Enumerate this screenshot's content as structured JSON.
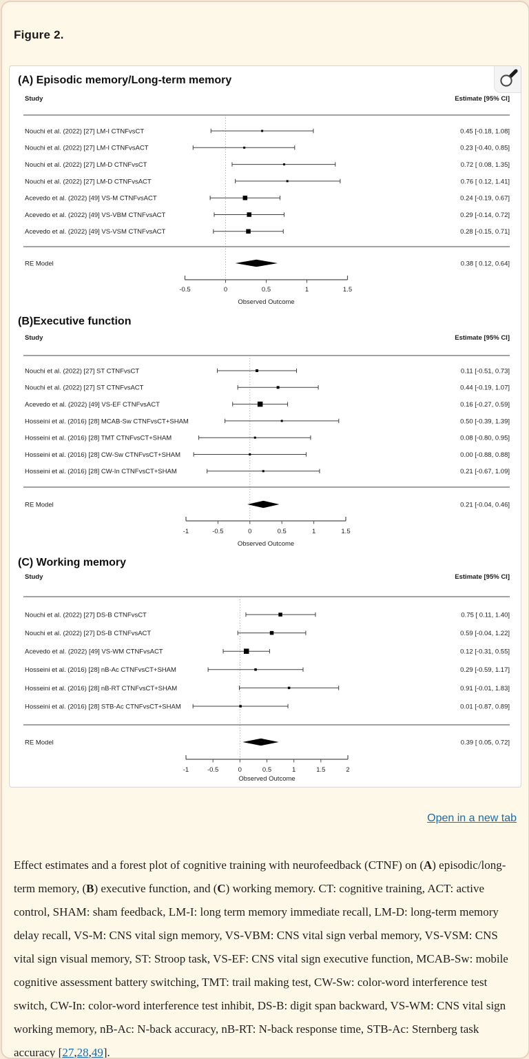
{
  "page": {
    "figure_label": "Figure 2.",
    "open_in_new_tab": "Open in a new tab",
    "accent_link_color": "#1b6ca8",
    "caption": [
      {
        "t": "Effect estimates and a forest plot of cognitive training with neurofeedback (CTNF) on ("
      },
      {
        "t": "A",
        "b": true
      },
      {
        "t": ") episodic/long-term memory, ("
      },
      {
        "t": "B",
        "b": true
      },
      {
        "t": ") executive function, and ("
      },
      {
        "t": "C",
        "b": true
      },
      {
        "t": ") working memory. CT: cognitive training, ACT: active control, SHAM: sham feedback, LM-I: long term memory immediate recall, LM-D: long-term memory delay recall, VS-M: CNS vital sign memory, VS-VBM: CNS vital sign verbal memory, VS-VSM: CNS vital sign visual memory, ST: Stroop task, VS-EF: CNS vital sign executive function, MCAB-Sw: mobile cognitive assessment battery switching, TMT: trail making test, CW-Sw: color-word interference test switch, CW-In: color-word interference test inhibit, DS-B: digit span backward, VS-WM: CNS vital sign working memory, nB-Ac: N-back accuracy, nB-RT: N-back response time, STB-Ac: Sternberg task accuracy ["
      },
      {
        "t": "27",
        "link": true
      },
      {
        "t": ","
      },
      {
        "t": "28",
        "link": true
      },
      {
        "t": ","
      },
      {
        "t": "49",
        "link": true
      },
      {
        "t": "]."
      }
    ],
    "zoom_icon": "magnifier-icon"
  },
  "chart_data": [
    {
      "type": "forest",
      "panel": "A",
      "title": "(A) Episodic memory/Long-term memory",
      "columns": {
        "study": "Study",
        "estimate": "Estimate [95% CI]"
      },
      "xlabel": "Observed Outcome",
      "xlim": [
        -0.5,
        1.5
      ],
      "xticks": [
        -0.5,
        0,
        0.5,
        1,
        1.5
      ],
      "rows": [
        {
          "label": "Nouchi et al. (2022) [27] LM-I CTNFvsCT",
          "est": 0.45,
          "lo": -0.18,
          "hi": 1.08,
          "text": "0.45 [-0.18, 1.08]",
          "msize": 3
        },
        {
          "label": "Nouchi et al. (2022) [27] LM-I CTNFvsACT",
          "est": 0.23,
          "lo": -0.4,
          "hi": 0.85,
          "text": "0.23 [-0.40, 0.85]",
          "msize": 3
        },
        {
          "label": "Nouchi et al. (2022) [27] LM-D CTNFvsCT",
          "est": 0.72,
          "lo": 0.08,
          "hi": 1.35,
          "text": "0.72 [ 0.08, 1.35]",
          "msize": 3
        },
        {
          "label": "Nouchi et al. (2022) [27] LM-D CTNFvsACT",
          "est": 0.76,
          "lo": 0.12,
          "hi": 1.41,
          "text": "0.76 [ 0.12, 1.41]",
          "msize": 3
        },
        {
          "label": "Acevedo et al. (2022) [49] VS-M CTNFvsACT",
          "est": 0.24,
          "lo": -0.19,
          "hi": 0.67,
          "text": "0.24 [-0.19, 0.67]",
          "msize": 6.5
        },
        {
          "label": "Acevedo et al. (2022) [49] VS-VBM CTNFvsACT",
          "est": 0.29,
          "lo": -0.14,
          "hi": 0.72,
          "text": "0.29 [-0.14, 0.72]",
          "msize": 6.5
        },
        {
          "label": "Acevedo et al. (2022) [49] VS-VSM CTNFvsACT",
          "est": 0.28,
          "lo": -0.15,
          "hi": 0.71,
          "text": "0.28 [-0.15, 0.71]",
          "msize": 6.5
        }
      ],
      "re_model": {
        "label": "RE Model",
        "est": 0.38,
        "lo": 0.12,
        "hi": 0.64,
        "text": "0.38 [ 0.12, 0.64]"
      }
    },
    {
      "type": "forest",
      "panel": "B",
      "title": "(B)Executive function",
      "columns": {
        "study": "Study",
        "estimate": "Estimate [95% CI]"
      },
      "xlabel": "Observed Outcome",
      "xlim": [
        -1,
        1.5
      ],
      "xticks": [
        -1,
        -0.5,
        0,
        0.5,
        1,
        1.5
      ],
      "rows": [
        {
          "label": "Nouchi et al. (2022) [27] ST CTNFvsCT",
          "est": 0.11,
          "lo": -0.51,
          "hi": 0.73,
          "text": "0.11 [-0.51, 0.73]",
          "msize": 4
        },
        {
          "label": "Nouchi et al. (2022) [27] ST CTNFvsACT",
          "est": 0.44,
          "lo": -0.19,
          "hi": 1.07,
          "text": "0.44 [-0.19, 1.07]",
          "msize": 4
        },
        {
          "label": "Acevedo et al. (2022) [49] VS-EF CTNFvsACT",
          "est": 0.16,
          "lo": -0.27,
          "hi": 0.59,
          "text": "0.16 [-0.27, 0.59]",
          "msize": 7.5
        },
        {
          "label": "Hosseini et al. (2016) [28] MCAB-Sw CTNFvsCT+SHAM",
          "est": 0.5,
          "lo": -0.39,
          "hi": 1.39,
          "text": "0.50 [-0.39, 1.39]",
          "msize": 3
        },
        {
          "label": "Hosseini et al. (2016) [28] TMT CTNFvsCT+SHAM",
          "est": 0.08,
          "lo": -0.8,
          "hi": 0.95,
          "text": "0.08 [-0.80, 0.95]",
          "msize": 3
        },
        {
          "label": "Hosseini et al. (2016) [28] CW-Sw CTNFvsCT+SHAM",
          "est": 0.0,
          "lo": -0.88,
          "hi": 0.88,
          "text": "0.00 [-0.88, 0.88]",
          "msize": 3
        },
        {
          "label": "Hosseini et al. (2016) [28] CW-In CTNFvsCT+SHAM",
          "est": 0.21,
          "lo": -0.67,
          "hi": 1.09,
          "text": "0.21 [-0.67, 1.09]",
          "msize": 3
        }
      ],
      "re_model": {
        "label": "RE Model",
        "est": 0.21,
        "lo": -0.04,
        "hi": 0.46,
        "text": "0.21 [-0.04, 0.46]"
      }
    },
    {
      "type": "forest",
      "panel": "C",
      "title": "(C) Working memory",
      "columns": {
        "study": "Study",
        "estimate": "Estimate [95% CI]"
      },
      "xlabel": "Observed Outcome",
      "xlim": [
        -1,
        2
      ],
      "xticks": [
        -1,
        -0.5,
        0,
        0.5,
        1,
        1.5,
        2
      ],
      "rows": [
        {
          "label": "Nouchi et al. (2022) [27] DS-B CTNFvsCT",
          "est": 0.75,
          "lo": 0.11,
          "hi": 1.4,
          "text": "0.75 [ 0.11, 1.40]",
          "msize": 5.5
        },
        {
          "label": "Nouchi et al. (2022) [27] DS-B CTNFvsACT",
          "est": 0.59,
          "lo": -0.04,
          "hi": 1.22,
          "text": "0.59 [-0.04, 1.22]",
          "msize": 5.5
        },
        {
          "label": "Acevedo et al. (2022) [49] VS-WM CTNFvsACT",
          "est": 0.12,
          "lo": -0.31,
          "hi": 0.55,
          "text": "0.12 [-0.31, 0.55]",
          "msize": 7.5
        },
        {
          "label": "Hosseini et al. (2016) [28] nB-Ac CTNFvsCT+SHAM",
          "est": 0.29,
          "lo": -0.59,
          "hi": 1.17,
          "text": "0.29 [-0.59, 1.17]",
          "msize": 3.5
        },
        {
          "label": "Hosseini et al. (2016) [28] nB-RT CTNFvsCT+SHAM",
          "est": 0.91,
          "lo": -0.01,
          "hi": 1.83,
          "text": "0.91 [-0.01, 1.83]",
          "msize": 3.5
        },
        {
          "label": "Hosseini et al. (2016) [28] STB-Ac CTNFvsCT+SHAM",
          "est": 0.01,
          "lo": -0.87,
          "hi": 0.89,
          "text": "0.01 [-0.87, 0.89]",
          "msize": 3.5
        }
      ],
      "re_model": {
        "label": "RE Model",
        "est": 0.39,
        "lo": 0.05,
        "hi": 0.72,
        "text": "0.39 [ 0.05, 0.72]"
      }
    }
  ]
}
